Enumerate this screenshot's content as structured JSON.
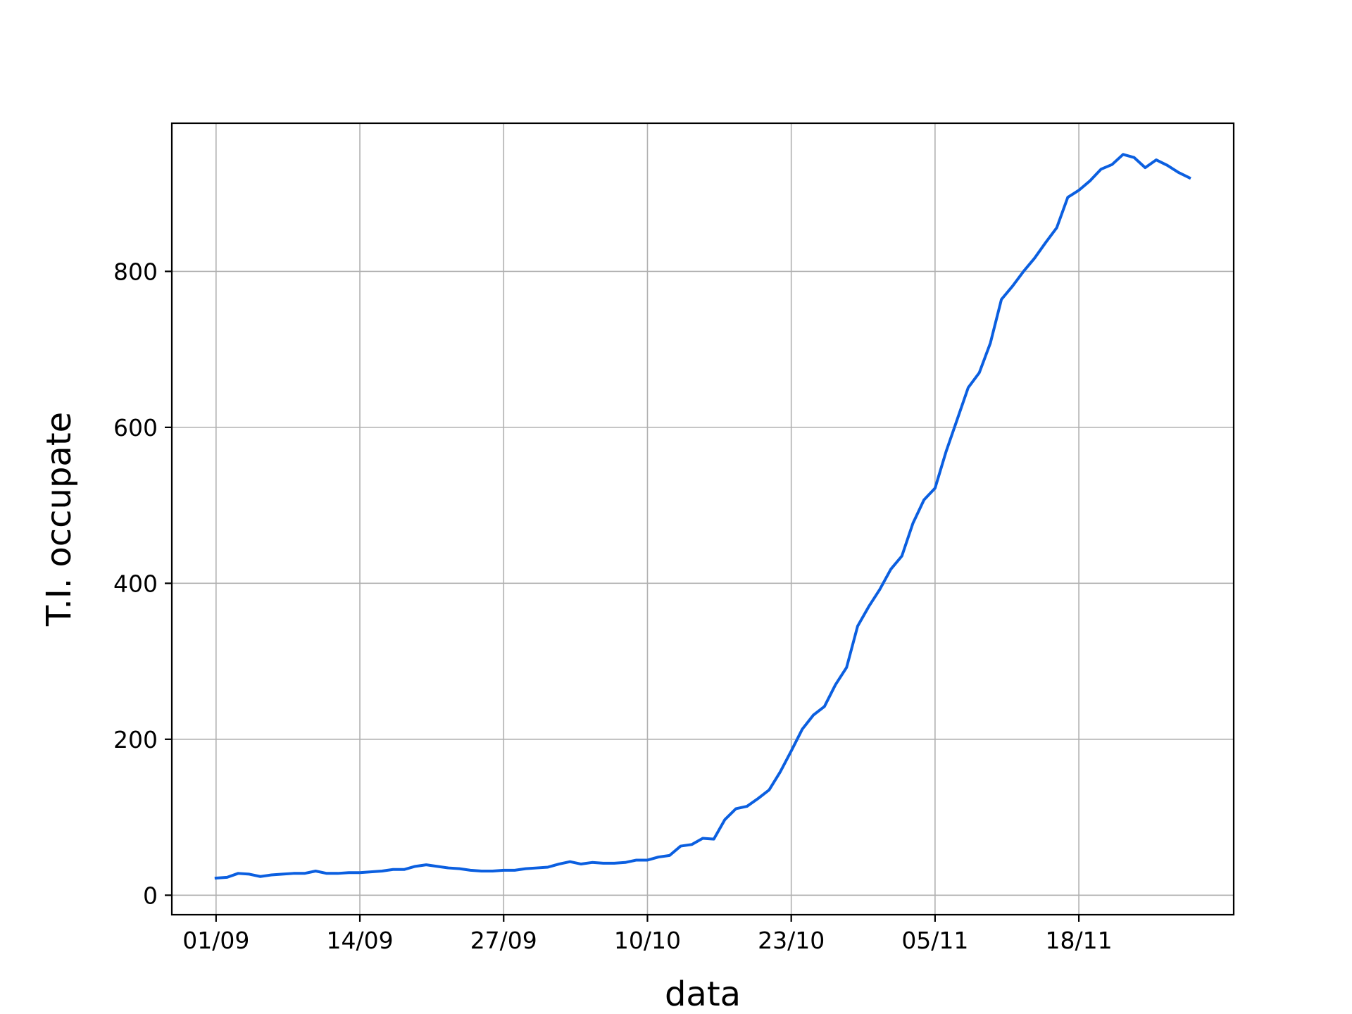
{
  "chart_data": {
    "type": "line",
    "xlabel": "data",
    "ylabel": "T.I. occupate",
    "x_range": [
      "2020-08-28",
      "2020-12-02"
    ],
    "ylim": [
      -25,
      990
    ],
    "x_ticks": [
      {
        "date": "2020-09-01",
        "label": "01/09"
      },
      {
        "date": "2020-09-14",
        "label": "14/09"
      },
      {
        "date": "2020-09-27",
        "label": "27/09"
      },
      {
        "date": "2020-10-10",
        "label": "10/10"
      },
      {
        "date": "2020-10-23",
        "label": "23/10"
      },
      {
        "date": "2020-11-05",
        "label": "05/11"
      },
      {
        "date": "2020-11-18",
        "label": "18/11"
      }
    ],
    "y_ticks": [
      {
        "value": 0,
        "label": "0"
      },
      {
        "value": 200,
        "label": "200"
      },
      {
        "value": 400,
        "label": "400"
      },
      {
        "value": 600,
        "label": "600"
      },
      {
        "value": 800,
        "label": "800"
      }
    ],
    "grid": true,
    "line_color": "#0b5fe0",
    "series": [
      {
        "start_date": "2020-09-01",
        "step_days": 1,
        "values": [
          22,
          23,
          28,
          27,
          24,
          26,
          27,
          28,
          28,
          31,
          28,
          28,
          29,
          29,
          30,
          31,
          33,
          33,
          37,
          39,
          37,
          35,
          34,
          32,
          31,
          31,
          32,
          32,
          34,
          35,
          36,
          40,
          43,
          40,
          42,
          41,
          41,
          42,
          45,
          45,
          49,
          51,
          63,
          65,
          73,
          72,
          97,
          111,
          114,
          124,
          135,
          158,
          185,
          213,
          231,
          242,
          270,
          292,
          345,
          370,
          392,
          418,
          435,
          477,
          507,
          522,
          569,
          610,
          651,
          670,
          708,
          764,
          781,
          800,
          817,
          837,
          856,
          895,
          904,
          916,
          931,
          937,
          950,
          946,
          933,
          943,
          936,
          927,
          920
        ]
      }
    ]
  }
}
